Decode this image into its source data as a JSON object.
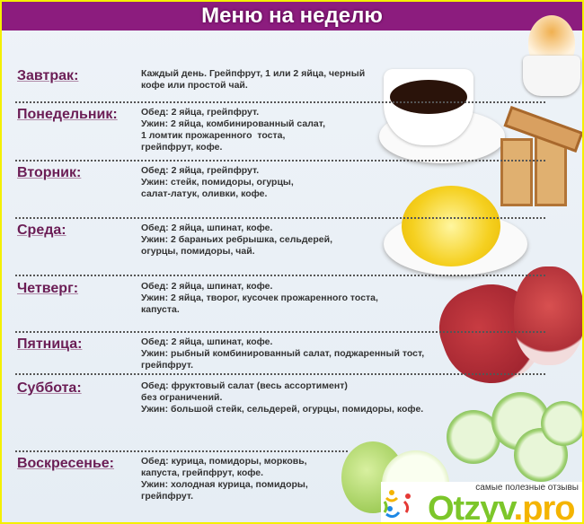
{
  "title": "Меню на неделю",
  "days": [
    {
      "label": "Завтрак:",
      "text": "Каждый день. Грейпфрут, 1 или 2 яйца, черный\nкофе или простой чай."
    },
    {
      "label": "Понедельник:",
      "text": "Обед: 2 яйца, грейпфрут.\nУжин: 2 яйца, комбинированный салат,\n1 ломтик прожаренного  тоста,\nгрейпфрут, кофе."
    },
    {
      "label": "Вторник:",
      "text": "Обед: 2 яйца, грейпфрут.\nУжин: стейк, помидоры, огурцы,\nсалат-латук, оливки, кофе."
    },
    {
      "label": "Среда:",
      "text": "Обед: 2 яйца, шпинат, кофе.\nУжин: 2 бараньих ребрышка, сельдерей,\nогурцы, помидоры, чай."
    },
    {
      "label": "Четверг:",
      "text": "Обед: 2 яйца, шпинат, кофе.\nУжин: 2 яйца, творог, кусочек прожаренного тоста,\nкапуста."
    },
    {
      "label": "Пятница:",
      "text": "Обед: 2 яйца, шпинат, кофе.\nУжин: рыбный комбинированный салат, поджаренный тост,\nгрейпфрут."
    },
    {
      "label": "Суббота:",
      "text": "Обед: фруктовый салат (весь ассортимент)\nбез ограничений.\nУжин: большой стейк, сельдерей, огурцы, помидоры, кофе."
    },
    {
      "label": "Воскресенье:",
      "text": "Обед: курица, помидоры, морковь,\nкапуста, грейпфрут, кофе.\nУжин: холодная курица, помидоры,\nгрейпфрут."
    }
  ],
  "watermark": {
    "tagline": "самые полезные отзывы",
    "brand": "Otzyv",
    "brand_suffix": ".pro"
  },
  "colors": {
    "title_bg": "#8c1c7e",
    "label": "#6b1d55",
    "border": "#f4f000"
  }
}
